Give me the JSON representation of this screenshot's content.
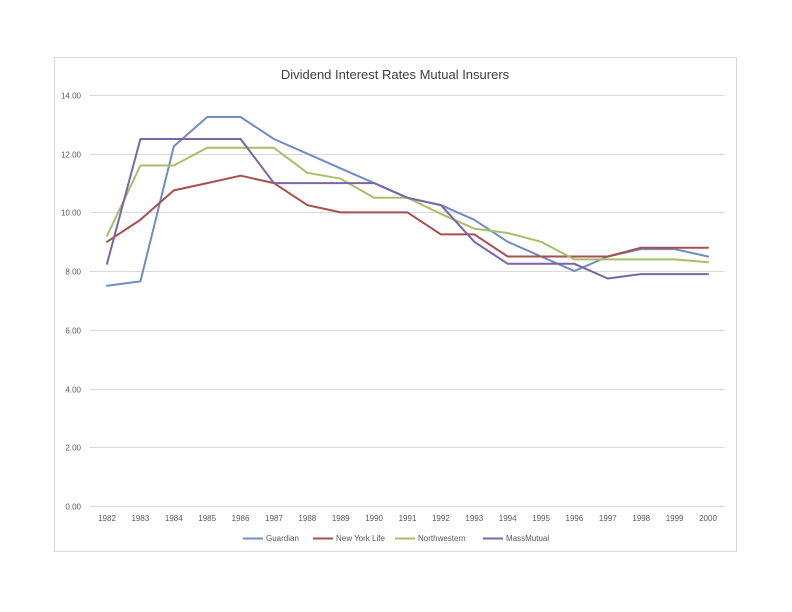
{
  "chart_data": {
    "type": "line",
    "title": "Dividend  Interest Rates Mutual Insurers",
    "xlabel": "",
    "ylabel": "",
    "categories": [
      "1982",
      "1983",
      "1984",
      "1985",
      "1986",
      "1987",
      "1988",
      "1989",
      "1990",
      "1991",
      "1992",
      "1993",
      "1994",
      "1995",
      "1996",
      "1997",
      "1998",
      "1999",
      "2000"
    ],
    "ylim": [
      0,
      14
    ],
    "yticks": [
      "0.00",
      "2.00",
      "4.00",
      "6.00",
      "8.00",
      "10.00",
      "12.00",
      "14.00"
    ],
    "grid": true,
    "legend": "bottom",
    "series": [
      {
        "name": "Guardian",
        "color": "#6f8cc4",
        "values": [
          7.5,
          7.65,
          12.25,
          13.25,
          13.25,
          12.5,
          12.0,
          11.5,
          11.0,
          10.5,
          10.25,
          9.75,
          9.0,
          8.5,
          8.0,
          8.5,
          8.75,
          8.75,
          8.5
        ]
      },
      {
        "name": "New York Life",
        "color": "#a94e4e",
        "values": [
          9.0,
          9.75,
          10.75,
          11.0,
          11.25,
          11.0,
          10.25,
          10.0,
          10.0,
          10.0,
          9.25,
          9.25,
          8.5,
          8.5,
          8.5,
          8.5,
          8.8,
          8.8,
          8.8
        ]
      },
      {
        "name": "Northwestern",
        "color": "#a6bf6a",
        "values": [
          9.2,
          11.6,
          11.6,
          12.2,
          12.2,
          12.2,
          11.35,
          11.15,
          10.5,
          10.5,
          9.95,
          9.45,
          9.3,
          9.0,
          8.4,
          8.4,
          8.4,
          8.4,
          8.3
        ]
      },
      {
        "name": "MassMutual",
        "color": "#7d64a6",
        "values": [
          8.25,
          12.5,
          12.5,
          12.5,
          12.5,
          11.0,
          11.0,
          11.0,
          11.0,
          10.5,
          10.25,
          9.0,
          8.25,
          8.25,
          8.25,
          7.75,
          7.9,
          7.9,
          7.9
        ]
      }
    ]
  }
}
